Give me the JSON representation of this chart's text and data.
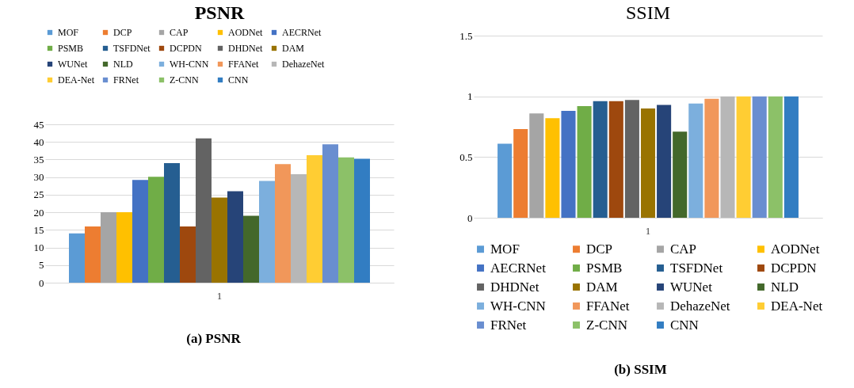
{
  "chart_data": [
    {
      "type": "bar",
      "title": "PSNR",
      "categories": [
        "1"
      ],
      "ylim": [
        0,
        45
      ],
      "yticks": [
        0,
        5,
        10,
        15,
        20,
        25,
        30,
        35,
        40,
        45
      ],
      "grid": "y",
      "legend": "top",
      "annotations": [
        "(a)  PSNR"
      ],
      "series": [
        {
          "name": "MOF",
          "color": "#5b9bd5",
          "values": [
            14
          ]
        },
        {
          "name": "DCP",
          "color": "#ed7d31",
          "values": [
            16
          ]
        },
        {
          "name": "CAP",
          "color": "#a5a5a5",
          "values": [
            20
          ]
        },
        {
          "name": "AODNet",
          "color": "#ffc000",
          "values": [
            20
          ]
        },
        {
          "name": "AECRNet",
          "color": "#4472c4",
          "values": [
            29.2
          ]
        },
        {
          "name": "PSMB",
          "color": "#70ad47",
          "values": [
            30.1
          ]
        },
        {
          "name": "TSFDNet",
          "color": "#255e91",
          "values": [
            34
          ]
        },
        {
          "name": "DCPDN",
          "color": "#9e480e",
          "values": [
            16
          ]
        },
        {
          "name": "DHDNet",
          "color": "#636363",
          "values": [
            41
          ]
        },
        {
          "name": "DAM",
          "color": "#997300",
          "values": [
            24.2
          ]
        },
        {
          "name": "WUNet",
          "color": "#264478",
          "values": [
            26
          ]
        },
        {
          "name": "NLD",
          "color": "#43682b",
          "values": [
            19
          ]
        },
        {
          "name": "WH-CNN",
          "color": "#7cafdd",
          "values": [
            28.9
          ]
        },
        {
          "name": "FFANet",
          "color": "#f1975a",
          "values": [
            33.7
          ]
        },
        {
          "name": "DehazeNet",
          "color": "#b7b7b7",
          "values": [
            30.8
          ]
        },
        {
          "name": "DEA-Net",
          "color": "#ffcd33",
          "values": [
            36.2
          ]
        },
        {
          "name": "FRNet",
          "color": "#698ed0",
          "values": [
            39.3
          ]
        },
        {
          "name": "Z-CNN",
          "color": "#8cc168",
          "values": [
            35.6
          ]
        },
        {
          "name": "CNN",
          "color": "#327dc2",
          "values": [
            35.2
          ]
        }
      ]
    },
    {
      "type": "bar",
      "title": "SSIM",
      "categories": [
        "1"
      ],
      "ylim": [
        0,
        1.5
      ],
      "yticks": [
        0,
        0.5,
        1,
        1.5
      ],
      "grid": "y",
      "legend": "bottom",
      "annotations": [
        "(b) SSIM"
      ],
      "series": [
        {
          "name": "MOF",
          "color": "#5b9bd5",
          "values": [
            0.61
          ]
        },
        {
          "name": "DCP",
          "color": "#ed7d31",
          "values": [
            0.73
          ]
        },
        {
          "name": "CAP",
          "color": "#a5a5a5",
          "values": [
            0.86
          ]
        },
        {
          "name": "AODNet",
          "color": "#ffc000",
          "values": [
            0.82
          ]
        },
        {
          "name": "AECRNet",
          "color": "#4472c4",
          "values": [
            0.88
          ]
        },
        {
          "name": "PSMB",
          "color": "#70ad47",
          "values": [
            0.92
          ]
        },
        {
          "name": "TSFDNet",
          "color": "#255e91",
          "values": [
            0.96
          ]
        },
        {
          "name": "DCPDN",
          "color": "#9e480e",
          "values": [
            0.96
          ]
        },
        {
          "name": "DHDNet",
          "color": "#636363",
          "values": [
            0.97
          ]
        },
        {
          "name": "DAM",
          "color": "#997300",
          "values": [
            0.9
          ]
        },
        {
          "name": "WUNet",
          "color": "#264478",
          "values": [
            0.93
          ]
        },
        {
          "name": "NLD",
          "color": "#43682b",
          "values": [
            0.71
          ]
        },
        {
          "name": "WH-CNN",
          "color": "#7cafdd",
          "values": [
            0.94
          ]
        },
        {
          "name": "FFANet",
          "color": "#f1975a",
          "values": [
            0.98
          ]
        },
        {
          "name": "DehazeNet",
          "color": "#b7b7b7",
          "values": [
            1.0
          ]
        },
        {
          "name": "DEA-Net",
          "color": "#ffcd33",
          "values": [
            1.0
          ]
        },
        {
          "name": "FRNet",
          "color": "#698ed0",
          "values": [
            1.0
          ]
        },
        {
          "name": "Z-CNN",
          "color": "#8cc168",
          "values": [
            1.0
          ]
        },
        {
          "name": "CNN",
          "color": "#327dc2",
          "values": [
            1.0
          ]
        }
      ]
    }
  ]
}
